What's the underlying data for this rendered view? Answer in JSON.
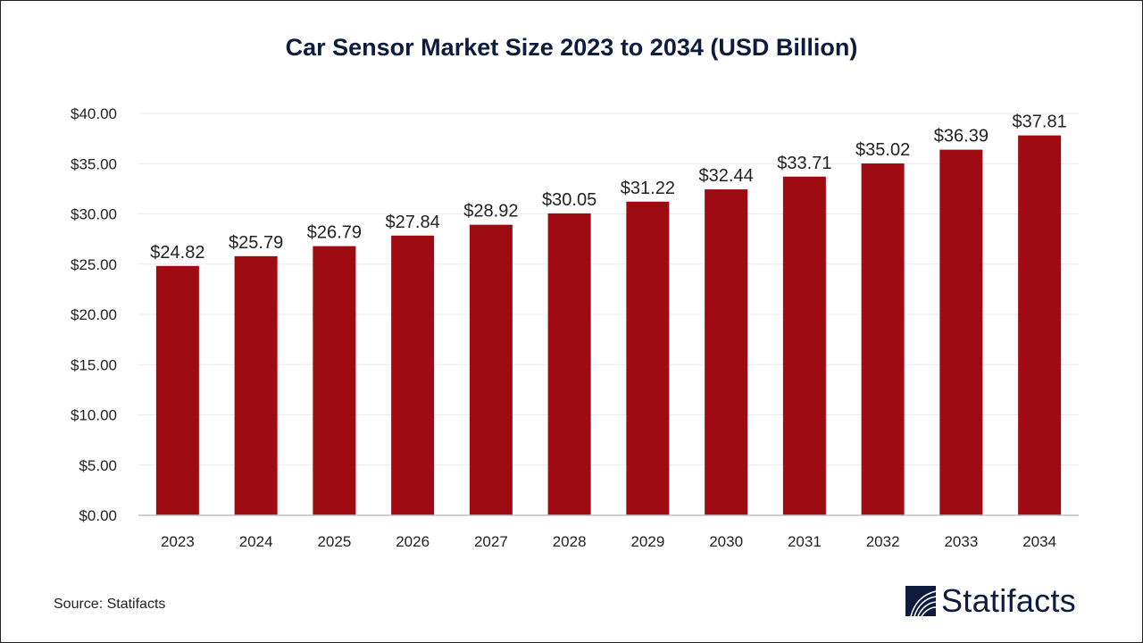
{
  "chart_data": {
    "type": "bar",
    "title": "Car Sensor Market Size 2023 to 2034 (USD Billion)",
    "categories": [
      "2023",
      "2024",
      "2025",
      "2026",
      "2027",
      "2028",
      "2029",
      "2030",
      "2031",
      "2032",
      "2033",
      "2034"
    ],
    "values": [
      24.82,
      25.79,
      26.79,
      27.84,
      28.92,
      30.05,
      31.22,
      32.44,
      33.71,
      35.02,
      36.39,
      37.81
    ],
    "data_labels": [
      "$24.82",
      "$25.79",
      "$26.79",
      "$27.84",
      "$28.92",
      "$30.05",
      "$31.22",
      "$32.44",
      "$33.71",
      "$35.02",
      "$36.39",
      "$37.81"
    ],
    "yticks": [
      0,
      5,
      10,
      15,
      20,
      25,
      30,
      35,
      40
    ],
    "ytick_labels": [
      "$0.00",
      "$5.00",
      "$10.00",
      "$15.00",
      "$20.00",
      "$25.00",
      "$30.00",
      "$35.00",
      "$40.00"
    ],
    "ylim": [
      0,
      40
    ],
    "grid": true,
    "bar_color": "#9e0b12",
    "xlabel": "",
    "ylabel": ""
  },
  "source": "Source: Statifacts",
  "logo": {
    "text": "Statifacts",
    "color": "#0d1b3e"
  }
}
